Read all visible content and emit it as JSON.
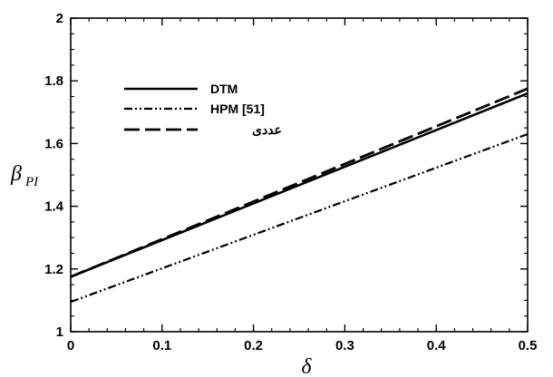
{
  "chart_data": {
    "type": "line",
    "xlabel": "δ",
    "ylabel": {
      "symbol": "β",
      "subscript": "PI"
    },
    "xlim": [
      0,
      0.5
    ],
    "ylim": [
      1,
      2
    ],
    "x_ticks": [
      "0",
      "0.1",
      "0.2",
      "0.3",
      "0.4",
      "0.5"
    ],
    "y_ticks": [
      "1",
      "1.2",
      "1.4",
      "1.6",
      "1.8",
      "2"
    ],
    "grid": false,
    "legend_position": "top-left",
    "series": [
      {
        "name": "DTM",
        "line_style": "solid",
        "x": [
          0,
          0.5
        ],
        "y": [
          1.175,
          1.76
        ]
      },
      {
        "name": "HPM [51]",
        "line_style": "dash-dot-dot",
        "x": [
          0,
          0.5
        ],
        "y": [
          1.095,
          1.63
        ]
      },
      {
        "name": "عددی",
        "line_style": "long-dash",
        "x": [
          0,
          0.5
        ],
        "y": [
          1.175,
          1.775
        ]
      }
    ]
  }
}
